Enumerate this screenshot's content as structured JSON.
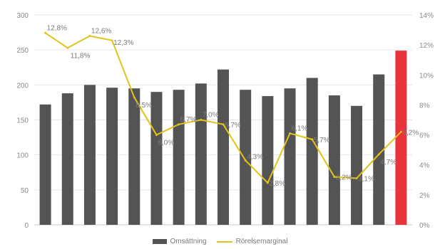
{
  "chart_data": {
    "type": "bar",
    "categories": [
      "",
      "",
      "",
      "",
      "",
      "",
      "",
      "",
      "",
      "",
      "",
      "",
      "",
      "",
      "",
      "",
      ""
    ],
    "series": [
      {
        "name": "Omsättning",
        "type": "bar",
        "axis": "left",
        "values": [
          172,
          188,
          200,
          196,
          195,
          190,
          193,
          202,
          222,
          193,
          184,
          195,
          210,
          185,
          170,
          215,
          249
        ],
        "colors": [
          "#545454",
          "#545454",
          "#545454",
          "#545454",
          "#545454",
          "#545454",
          "#545454",
          "#545454",
          "#545454",
          "#545454",
          "#545454",
          "#545454",
          "#545454",
          "#545454",
          "#545454",
          "#545454",
          "#e8323c"
        ]
      },
      {
        "name": "Rörelsemarginal",
        "type": "line",
        "axis": "right",
        "values": [
          12.8,
          11.8,
          12.6,
          12.3,
          8.5,
          6.0,
          6.7,
          7.0,
          6.7,
          4.3,
          2.8,
          6.1,
          5.7,
          3.2,
          3.1,
          4.7,
          6.2
        ],
        "labels": [
          "12,8%",
          "11,8%",
          "12,6%",
          "12,3%",
          "8,5%",
          "6,0%",
          "6,7%",
          "7,0%",
          "6,7%",
          "4,3%",
          "2,8%",
          "6,1%",
          "5,7%",
          "3,2%",
          "3,1%",
          "4,7%",
          "6,2%"
        ],
        "color": "#e3c21a"
      }
    ],
    "ylim_left": [
      0,
      300
    ],
    "yticks_left": [
      "0",
      "50",
      "100",
      "150",
      "200",
      "250",
      "300"
    ],
    "ylim_right": [
      0,
      14
    ],
    "yticks_right": [
      "0%",
      "2%",
      "4%",
      "6%",
      "8%",
      "10%",
      "12%",
      "14%"
    ],
    "grid": true,
    "legend_position": "bottom"
  }
}
